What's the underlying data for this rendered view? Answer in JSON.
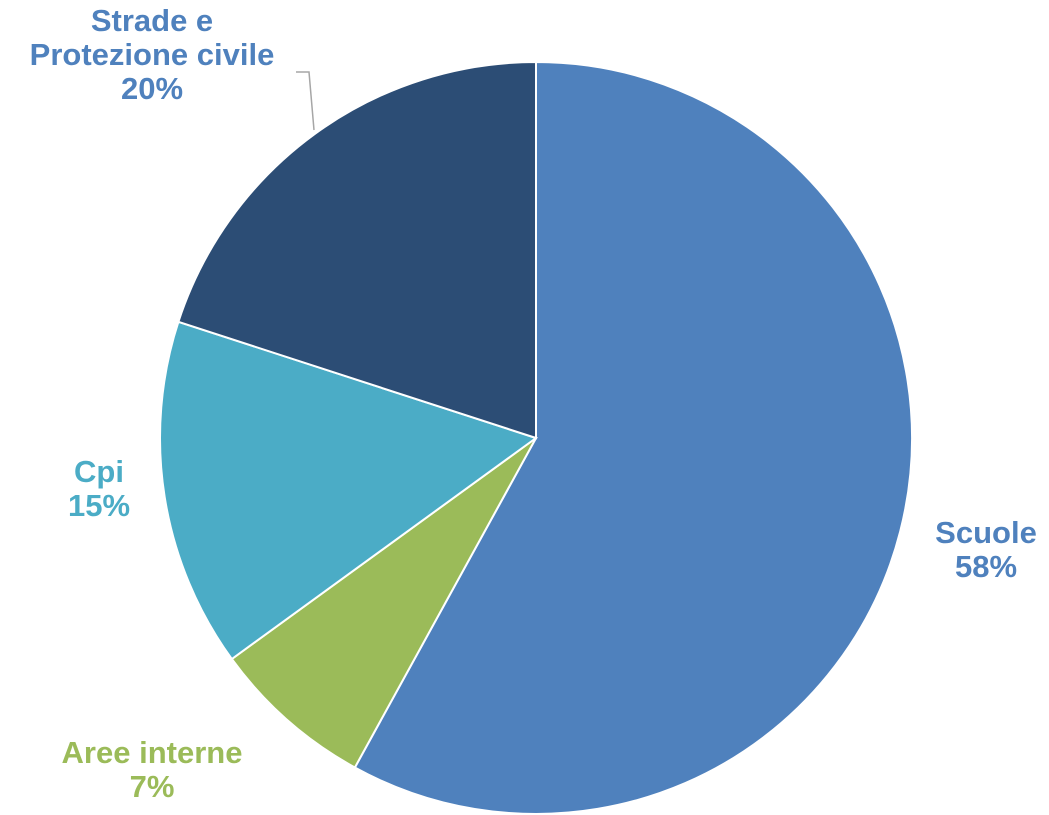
{
  "chart_data": {
    "type": "pie",
    "title": "",
    "slices": [
      {
        "label_lines": [
          "Scuole"
        ],
        "percent_label": "58%",
        "value": 58,
        "color": "#4F81BD"
      },
      {
        "label_lines": [
          "Aree interne"
        ],
        "percent_label": "7%",
        "value": 7,
        "color": "#9BBB59"
      },
      {
        "label_lines": [
          "Cpi"
        ],
        "percent_label": "15%",
        "value": 15,
        "color": "#4BACC6"
      },
      {
        "label_lines": [
          "Strade e",
          "Protezione civile"
        ],
        "percent_label": "20%",
        "value": 20,
        "color": "#2C4D75"
      }
    ],
    "start_angle": "12 o'clock",
    "direction": "clockwise",
    "legend": "none",
    "data_labels": "outside, category name and percentage"
  }
}
